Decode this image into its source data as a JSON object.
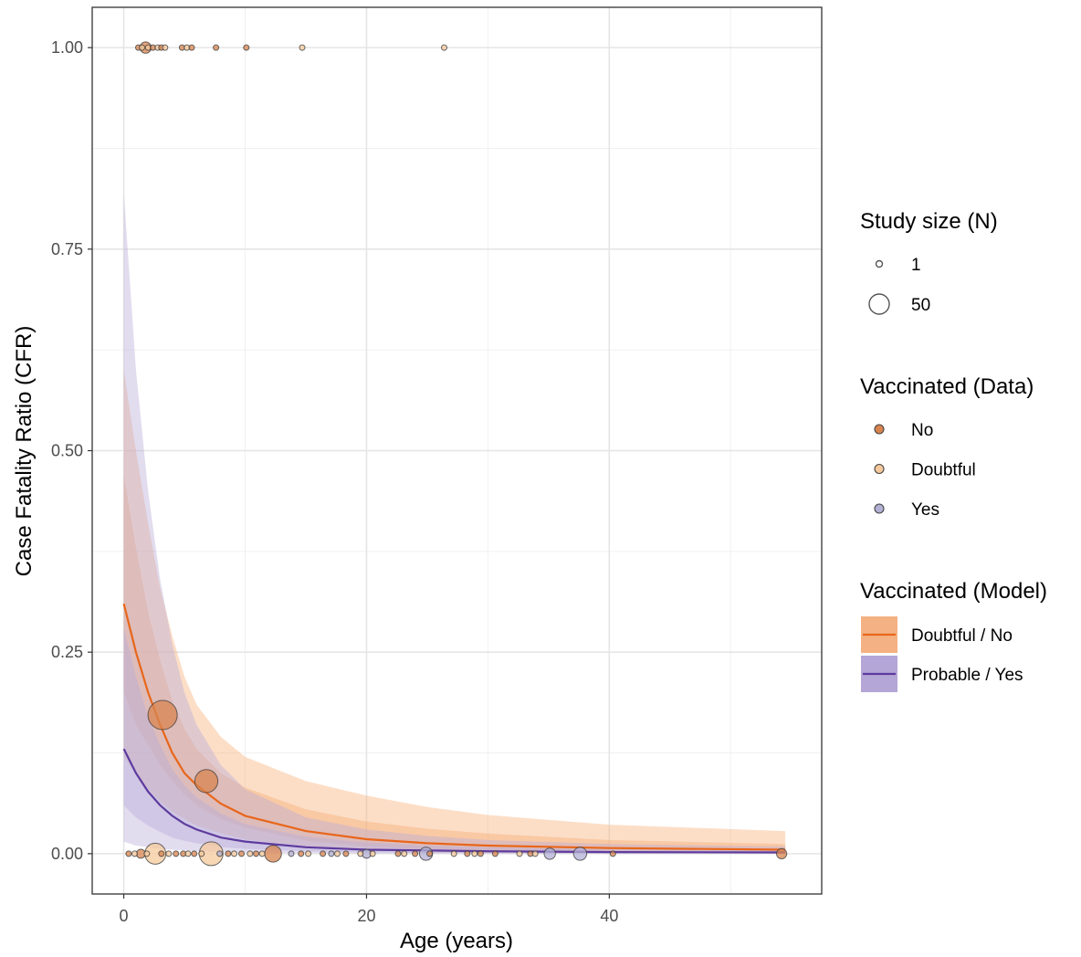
{
  "chart_data": {
    "type": "scatter",
    "title": "",
    "xlabel": "Age (years)",
    "ylabel": "Case Fatality Ratio (CFR)",
    "xlim": [
      -2.6,
      57.5
    ],
    "ylim": [
      -0.05,
      1.05
    ],
    "x_ticks": [
      0,
      20,
      40
    ],
    "x_tick_labels": [
      "0",
      "20",
      "40"
    ],
    "y_ticks": [
      0,
      0.25,
      0.5,
      0.75,
      1.0
    ],
    "y_tick_labels": [
      "0.00",
      "0.25",
      "0.50",
      "0.75",
      "1.00"
    ],
    "grid": true,
    "legend_position": "right",
    "legends": {
      "size": {
        "title": "Study size (N)",
        "items": [
          {
            "label": "1",
            "n": 1
          },
          {
            "label": "50",
            "n": 50
          }
        ]
      },
      "data": {
        "title": "Vaccinated (Data)",
        "items": [
          {
            "label": "No",
            "key": "No",
            "color": "#d8844f"
          },
          {
            "label": "Doubtful",
            "key": "Doubtful",
            "color": "#f5c99c"
          },
          {
            "label": "Yes",
            "key": "Yes",
            "color": "#b3b0d4"
          }
        ]
      },
      "model": {
        "title": "Vaccinated (Model)",
        "items": [
          {
            "label": "Doubtful / No",
            "key": "DN",
            "line": "#e8661a",
            "band": "#f4b183"
          },
          {
            "label": "Probable / Yes",
            "key": "PY",
            "line": "#5e3b9e",
            "band": "#b4a6d6"
          }
        ]
      }
    },
    "series": [
      {
        "name": "Doubtful / No",
        "line_color": "#e8661a",
        "band_color": "#f7b07a",
        "x": [
          0,
          1,
          2,
          3,
          4,
          5,
          6,
          8,
          10,
          15,
          20,
          25,
          30,
          40,
          54.5
        ],
        "mean": [
          0.31,
          0.25,
          0.2,
          0.16,
          0.125,
          0.1,
          0.085,
          0.062,
          0.047,
          0.028,
          0.018,
          0.013,
          0.01,
          0.007,
          0.005
        ],
        "lo80": [
          0.2,
          0.16,
          0.135,
          0.11,
          0.09,
          0.073,
          0.06,
          0.043,
          0.032,
          0.016,
          0.009,
          0.005,
          0.003,
          0.002,
          0.001
        ],
        "hi80": [
          0.47,
          0.38,
          0.3,
          0.24,
          0.19,
          0.155,
          0.13,
          0.1,
          0.082,
          0.055,
          0.04,
          0.031,
          0.025,
          0.017,
          0.012
        ],
        "lo95": [
          0.12,
          0.1,
          0.08,
          0.065,
          0.052,
          0.043,
          0.035,
          0.025,
          0.018,
          0.008,
          0.004,
          0.002,
          0.001,
          0.0005,
          0.0003
        ],
        "hi95": [
          0.6,
          0.5,
          0.41,
          0.33,
          0.27,
          0.22,
          0.185,
          0.145,
          0.12,
          0.09,
          0.072,
          0.058,
          0.048,
          0.036,
          0.028
        ]
      },
      {
        "name": "Probable / Yes",
        "line_color": "#5e3b9e",
        "band_color": "#b9acd9",
        "x": [
          0,
          1,
          2,
          3,
          4,
          5,
          6,
          8,
          10,
          15,
          20,
          25,
          30,
          40,
          54.5
        ],
        "mean": [
          0.13,
          0.1,
          0.077,
          0.06,
          0.047,
          0.037,
          0.03,
          0.02,
          0.015,
          0.008,
          0.005,
          0.004,
          0.003,
          0.002,
          0.0015
        ],
        "lo80": [
          0.06,
          0.045,
          0.035,
          0.027,
          0.02,
          0.016,
          0.013,
          0.008,
          0.006,
          0.003,
          0.0015,
          0.001,
          0.0008,
          0.0005,
          0.0003
        ],
        "hi80": [
          0.28,
          0.22,
          0.17,
          0.135,
          0.105,
          0.085,
          0.07,
          0.05,
          0.037,
          0.021,
          0.014,
          0.01,
          0.008,
          0.005,
          0.004
        ],
        "lo95": [
          0.015,
          0.01,
          0.008,
          0.006,
          0.005,
          0.004,
          0.003,
          0.002,
          0.0015,
          0.0008,
          0.0004,
          0.0003,
          0.0002,
          0.0001,
          0.0001
        ],
        "hi95": [
          0.82,
          0.6,
          0.45,
          0.34,
          0.26,
          0.2,
          0.16,
          0.11,
          0.08,
          0.045,
          0.03,
          0.022,
          0.017,
          0.012,
          0.009
        ]
      }
    ],
    "points": [
      {
        "x": 1.2,
        "y": 1,
        "n": 1,
        "vacc": "No"
      },
      {
        "x": 1.5,
        "y": 1,
        "n": 1,
        "vacc": "Doubtful"
      },
      {
        "x": 1.8,
        "y": 1,
        "n": 4,
        "vacc": "No"
      },
      {
        "x": 2.0,
        "y": 1,
        "n": 1,
        "vacc": "Doubtful"
      },
      {
        "x": 2.4,
        "y": 1,
        "n": 1,
        "vacc": "No"
      },
      {
        "x": 2.8,
        "y": 1,
        "n": 1,
        "vacc": "Doubtful"
      },
      {
        "x": 3.1,
        "y": 1,
        "n": 1,
        "vacc": "No"
      },
      {
        "x": 3.4,
        "y": 1,
        "n": 1,
        "vacc": "Doubtful"
      },
      {
        "x": 4.8,
        "y": 1,
        "n": 1,
        "vacc": "No"
      },
      {
        "x": 5.2,
        "y": 1,
        "n": 1,
        "vacc": "Doubtful"
      },
      {
        "x": 5.6,
        "y": 1,
        "n": 1,
        "vacc": "No"
      },
      {
        "x": 7.6,
        "y": 1,
        "n": 1,
        "vacc": "No"
      },
      {
        "x": 10.1,
        "y": 1,
        "n": 1,
        "vacc": "No"
      },
      {
        "x": 14.7,
        "y": 1,
        "n": 1,
        "vacc": "Doubtful"
      },
      {
        "x": 26.4,
        "y": 1,
        "n": 1,
        "vacc": "Doubtful"
      },
      {
        "x": 3.2,
        "y": 0.172,
        "n": 50,
        "vacc": "No"
      },
      {
        "x": 6.8,
        "y": 0.09,
        "n": 28,
        "vacc": "No"
      },
      {
        "x": 0.4,
        "y": 0,
        "n": 1,
        "vacc": "No"
      },
      {
        "x": 0.9,
        "y": 0,
        "n": 1,
        "vacc": "Doubtful"
      },
      {
        "x": 1.4,
        "y": 0,
        "n": 2,
        "vacc": "No"
      },
      {
        "x": 1.9,
        "y": 0,
        "n": 1,
        "vacc": "Doubtful"
      },
      {
        "x": 2.6,
        "y": 0,
        "n": 22,
        "vacc": "Doubtful"
      },
      {
        "x": 3.1,
        "y": 0,
        "n": 1,
        "vacc": "No"
      },
      {
        "x": 3.7,
        "y": 0,
        "n": 1,
        "vacc": "Doubtful"
      },
      {
        "x": 4.3,
        "y": 0,
        "n": 1,
        "vacc": "No"
      },
      {
        "x": 4.9,
        "y": 0,
        "n": 1,
        "vacc": "No"
      },
      {
        "x": 5.3,
        "y": 0,
        "n": 1,
        "vacc": "Doubtful"
      },
      {
        "x": 5.8,
        "y": 0,
        "n": 1,
        "vacc": "No"
      },
      {
        "x": 6.4,
        "y": 0,
        "n": 1,
        "vacc": "Doubtful"
      },
      {
        "x": 7.2,
        "y": 0,
        "n": 30,
        "vacc": "Doubtful"
      },
      {
        "x": 7.9,
        "y": 0,
        "n": 1,
        "vacc": "Yes"
      },
      {
        "x": 8.6,
        "y": 0,
        "n": 1,
        "vacc": "No"
      },
      {
        "x": 9.1,
        "y": 0,
        "n": 1,
        "vacc": "Doubtful"
      },
      {
        "x": 9.7,
        "y": 0,
        "n": 1,
        "vacc": "No"
      },
      {
        "x": 10.4,
        "y": 0,
        "n": 1,
        "vacc": "Doubtful"
      },
      {
        "x": 10.9,
        "y": 0,
        "n": 1,
        "vacc": "No"
      },
      {
        "x": 11.4,
        "y": 0,
        "n": 1,
        "vacc": "Doubtful"
      },
      {
        "x": 12.3,
        "y": 0,
        "n": 12,
        "vacc": "No"
      },
      {
        "x": 13.8,
        "y": 0,
        "n": 1,
        "vacc": "Yes"
      },
      {
        "x": 14.6,
        "y": 0,
        "n": 1,
        "vacc": "No"
      },
      {
        "x": 15.2,
        "y": 0,
        "n": 1,
        "vacc": "Doubtful"
      },
      {
        "x": 16.4,
        "y": 0,
        "n": 1,
        "vacc": "No"
      },
      {
        "x": 17.1,
        "y": 0,
        "n": 1,
        "vacc": "Yes"
      },
      {
        "x": 17.6,
        "y": 0,
        "n": 1,
        "vacc": "Doubtful"
      },
      {
        "x": 18.3,
        "y": 0,
        "n": 1,
        "vacc": "No"
      },
      {
        "x": 19.5,
        "y": 0,
        "n": 1,
        "vacc": "Doubtful"
      },
      {
        "x": 20.0,
        "y": 0,
        "n": 2,
        "vacc": "Yes"
      },
      {
        "x": 20.5,
        "y": 0,
        "n": 1,
        "vacc": "Doubtful"
      },
      {
        "x": 22.6,
        "y": 0,
        "n": 1,
        "vacc": "No"
      },
      {
        "x": 23.1,
        "y": 0,
        "n": 1,
        "vacc": "Doubtful"
      },
      {
        "x": 24.0,
        "y": 0,
        "n": 1,
        "vacc": "No"
      },
      {
        "x": 24.9,
        "y": 0,
        "n": 6,
        "vacc": "Yes"
      },
      {
        "x": 25.2,
        "y": 0,
        "n": 1,
        "vacc": "No"
      },
      {
        "x": 27.2,
        "y": 0,
        "n": 1,
        "vacc": "Doubtful"
      },
      {
        "x": 28.3,
        "y": 0,
        "n": 1,
        "vacc": "No"
      },
      {
        "x": 28.9,
        "y": 0,
        "n": 1,
        "vacc": "Doubtful"
      },
      {
        "x": 29.4,
        "y": 0,
        "n": 1,
        "vacc": "No"
      },
      {
        "x": 30.6,
        "y": 0,
        "n": 1,
        "vacc": "No"
      },
      {
        "x": 32.6,
        "y": 0,
        "n": 1,
        "vacc": "Doubtful"
      },
      {
        "x": 33.5,
        "y": 0,
        "n": 1,
        "vacc": "No"
      },
      {
        "x": 33.9,
        "y": 0,
        "n": 1,
        "vacc": "Doubtful"
      },
      {
        "x": 35.1,
        "y": 0,
        "n": 4,
        "vacc": "Yes"
      },
      {
        "x": 37.6,
        "y": 0,
        "n": 6,
        "vacc": "Yes"
      },
      {
        "x": 40.3,
        "y": 0,
        "n": 1,
        "vacc": "No"
      },
      {
        "x": 54.2,
        "y": 0,
        "n": 3,
        "vacc": "No"
      }
    ]
  }
}
